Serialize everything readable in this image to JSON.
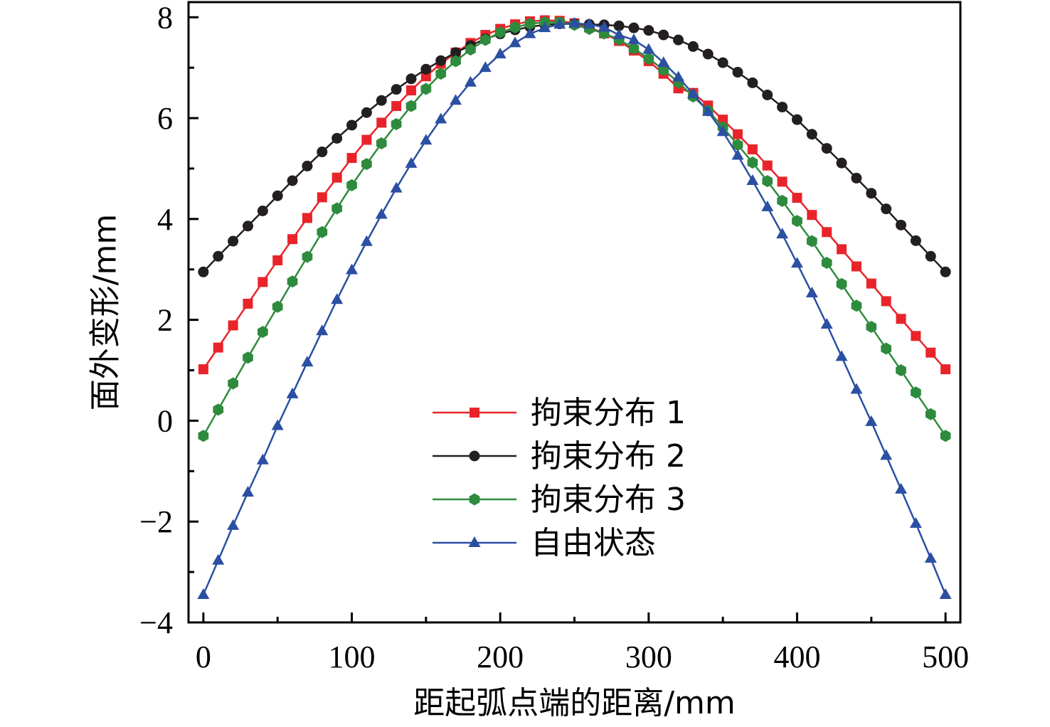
{
  "chart_data": {
    "type": "line",
    "xlabel": "距起弧点端的距离/mm",
    "ylabel": "面外变形/mm",
    "xlim": [
      -10,
      510
    ],
    "ylim": [
      -4,
      8.3
    ],
    "xticks": [
      0,
      100,
      200,
      300,
      400,
      500
    ],
    "yticks": [
      -4,
      -2,
      0,
      2,
      4,
      6,
      8
    ],
    "x": [
      0,
      10,
      20,
      30,
      40,
      50,
      60,
      70,
      80,
      90,
      100,
      110,
      120,
      130,
      140,
      150,
      160,
      170,
      180,
      190,
      200,
      210,
      220,
      230,
      240,
      250,
      260,
      270,
      280,
      290,
      300,
      310,
      320,
      330,
      340,
      350,
      360,
      370,
      380,
      390,
      400,
      410,
      420,
      430,
      440,
      450,
      460,
      470,
      480,
      490,
      500
    ],
    "legend_position": "center-bottom",
    "grid": false,
    "series": [
      {
        "name": "拘束分布 1",
        "color": "#e8242a",
        "marker": "square",
        "values": [
          1.02,
          1.45,
          1.89,
          2.32,
          2.75,
          3.18,
          3.6,
          4.02,
          4.43,
          4.82,
          5.21,
          5.57,
          5.91,
          6.24,
          6.55,
          6.83,
          7.08,
          7.3,
          7.49,
          7.65,
          7.77,
          7.86,
          7.92,
          7.94,
          7.93,
          7.88,
          7.8,
          7.68,
          7.53,
          7.34,
          7.13,
          6.88,
          6.59,
          6.5,
          6.25,
          5.97,
          5.68,
          5.38,
          5.06,
          4.74,
          4.42,
          4.08,
          3.74,
          3.4,
          3.06,
          2.72,
          2.37,
          2.02,
          1.68,
          1.35,
          1.02
        ]
      },
      {
        "name": "拘束分布 2",
        "color": "#231f20",
        "marker": "circle",
        "values": [
          2.95,
          3.26,
          3.56,
          3.86,
          4.16,
          4.46,
          4.76,
          5.05,
          5.33,
          5.6,
          5.86,
          6.11,
          6.35,
          6.57,
          6.78,
          6.97,
          7.14,
          7.3,
          7.44,
          7.57,
          7.67,
          7.75,
          7.81,
          7.85,
          7.87,
          7.87,
          7.86,
          7.85,
          7.83,
          7.79,
          7.74,
          7.65,
          7.55,
          7.42,
          7.27,
          7.1,
          6.91,
          6.7,
          6.46,
          6.22,
          5.97,
          5.68,
          5.4,
          5.11,
          4.81,
          4.51,
          4.2,
          3.88,
          3.57,
          3.26,
          2.95
        ]
      },
      {
        "name": "拘束分布 3",
        "color": "#2e8b3e",
        "marker": "hexagon",
        "values": [
          -0.3,
          0.22,
          0.74,
          1.25,
          1.76,
          2.26,
          2.76,
          3.25,
          3.74,
          4.21,
          4.67,
          5.09,
          5.5,
          5.88,
          6.24,
          6.58,
          6.88,
          7.13,
          7.36,
          7.55,
          7.7,
          7.8,
          7.87,
          7.9,
          7.9,
          7.85,
          7.77,
          7.68,
          7.56,
          7.38,
          7.18,
          6.96,
          6.71,
          6.43,
          6.15,
          5.82,
          5.47,
          5.12,
          4.75,
          4.36,
          3.96,
          3.56,
          3.13,
          2.71,
          2.28,
          1.86,
          1.43,
          1.0,
          0.56,
          0.13,
          -0.3
        ]
      },
      {
        "name": "自由状态",
        "color": "#2b4fa2",
        "marker": "triangle",
        "values": [
          -3.45,
          -2.77,
          -2.08,
          -1.42,
          -0.78,
          -0.1,
          0.53,
          1.16,
          1.78,
          2.4,
          2.99,
          3.55,
          4.09,
          4.61,
          5.1,
          5.56,
          5.98,
          6.35,
          6.71,
          7.0,
          7.27,
          7.49,
          7.67,
          7.79,
          7.86,
          7.88,
          7.86,
          7.8,
          7.65,
          7.55,
          7.36,
          7.1,
          6.81,
          6.48,
          6.13,
          5.73,
          5.26,
          4.76,
          4.24,
          3.7,
          3.12,
          2.53,
          1.91,
          1.27,
          0.62,
          -0.02,
          -0.69,
          -1.36,
          -2.04,
          -2.73,
          -3.45
        ]
      }
    ]
  }
}
